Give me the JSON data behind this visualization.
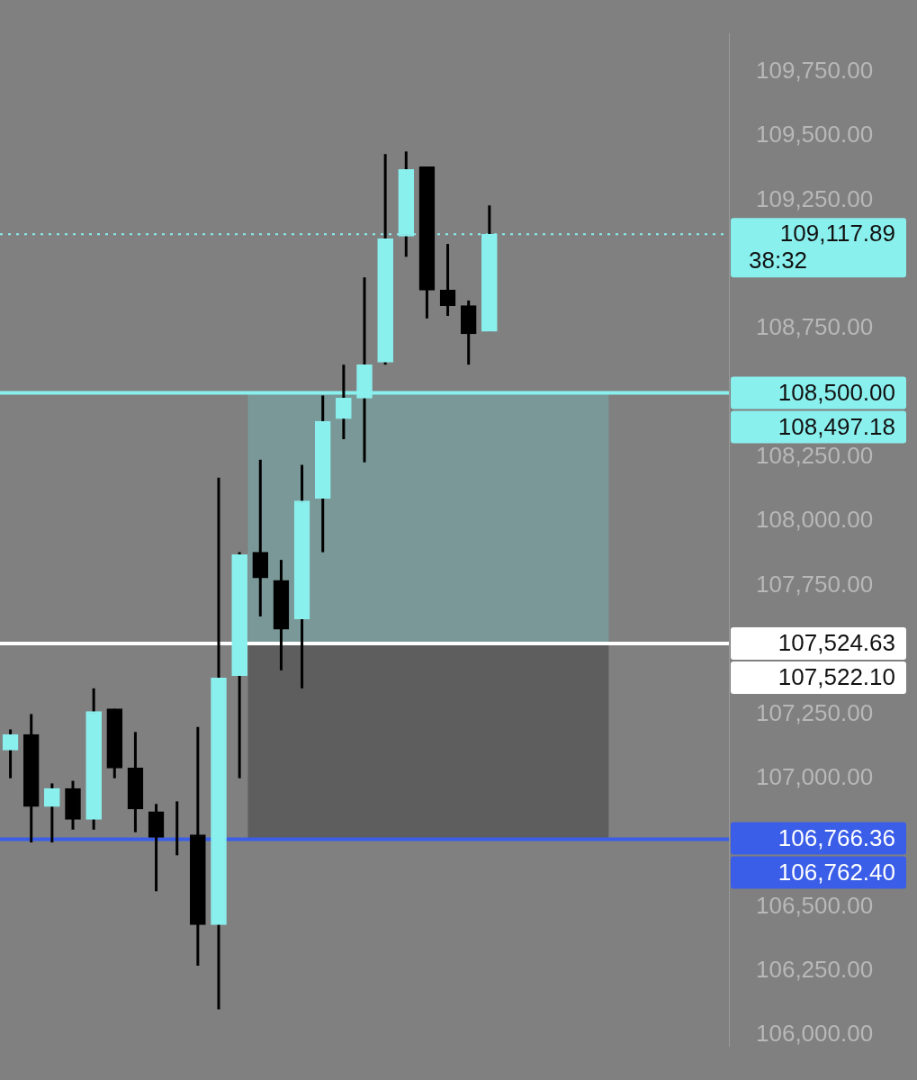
{
  "chart_data": {
    "type": "candlestick",
    "categories": [
      null,
      null,
      null,
      null,
      null,
      null,
      null,
      null,
      null,
      null,
      null,
      null,
      null,
      null,
      null,
      null,
      null,
      null,
      null,
      null,
      null,
      null,
      null,
      null,
      null,
      null,
      null,
      null,
      null,
      null,
      null,
      null,
      null,
      null,
      null
    ],
    "ohlc": [
      [
        107110,
        107190,
        107000,
        107170
      ],
      [
        107170,
        107250,
        106750,
        106890
      ],
      [
        106890,
        106980,
        106750,
        106960
      ],
      [
        106960,
        106990,
        106800,
        106840
      ],
      [
        106840,
        107350,
        106800,
        107260
      ],
      [
        107270,
        107270,
        107000,
        107040
      ],
      [
        107040,
        107180,
        106790,
        106880
      ],
      [
        106870,
        106900,
        106560,
        106770
      ],
      [
        106780,
        106910,
        106700,
        106780
      ],
      [
        106780,
        107200,
        106270,
        106430
      ],
      [
        106430,
        108170,
        106100,
        107390
      ],
      [
        107400,
        107880,
        107000,
        107870
      ],
      [
        107880,
        108240,
        107630,
        107780
      ],
      [
        107770,
        107850,
        107420,
        107580
      ],
      [
        107620,
        108220,
        107350,
        108080
      ],
      [
        108090,
        108490,
        107880,
        108390
      ],
      [
        108400,
        108610,
        108320,
        108480
      ],
      [
        108480,
        108950,
        108230,
        108610
      ],
      [
        108620,
        109430,
        108610,
        109100
      ],
      [
        109110,
        109440,
        109030,
        109370
      ],
      [
        109380,
        109380,
        108790,
        108900
      ],
      [
        108900,
        109080,
        108800,
        108840
      ],
      [
        108840,
        108860,
        108610,
        108730
      ],
      [
        108740,
        109230,
        108740,
        109117.89
      ],
      null,
      null,
      null,
      null,
      null,
      null,
      null,
      null,
      null,
      null,
      null
    ],
    "colors": [
      "#8af0ee",
      "#000000",
      "#8af0ee",
      "#000000",
      "#8af0ee",
      "#000000",
      "#000000",
      "#000000",
      "#000000",
      "#000000",
      "#8af0ee",
      "#8af0ee",
      "#000000",
      "#000000",
      "#8af0ee",
      "#8af0ee",
      "#8af0ee",
      "#8af0ee",
      "#8af0ee",
      "#8af0ee",
      "#000000",
      "#000000",
      "#000000",
      "#8af0ee",
      null,
      null,
      null,
      null,
      null,
      null,
      null,
      null,
      null,
      null,
      null
    ],
    "ylim": [
      105957,
      109898
    ],
    "yticks": [
      {
        "value": 106000,
        "label": "106,000.00"
      },
      {
        "value": 106250,
        "label": "106,250.00"
      },
      {
        "value": 106500,
        "label": "106,500.00"
      },
      {
        "value": 107000,
        "label": "107,000.00"
      },
      {
        "value": 107250,
        "label": "107,250.00"
      },
      {
        "value": 107750,
        "label": "107,750.00"
      },
      {
        "value": 108000,
        "label": "108,000.00"
      },
      {
        "value": 108250,
        "label": "108,250.00"
      },
      {
        "value": 108750,
        "label": "108,750.00"
      },
      {
        "value": 109250,
        "label": "109,250.00"
      },
      {
        "value": 109500,
        "label": "109,500.00"
      },
      {
        "value": 109750,
        "label": "109,750.00"
      }
    ],
    "tick_labels": "y",
    "grid": false,
    "legend": false,
    "ref_lines": [
      {
        "axis": "y",
        "value": 109117.89,
        "label": "109,117.89",
        "color": "#8af0ee",
        "line_style": "dotted"
      },
      {
        "axis": "y",
        "value": 108500,
        "label": "108,500.00",
        "color": "#8af0ee",
        "line_style": "solid"
      },
      {
        "axis": "y",
        "value": 107524.63,
        "label": "107,524.63",
        "color": "#ffffff",
        "line_style": "solid"
      },
      {
        "axis": "y",
        "value": 106762.4,
        "label": "106,762.40",
        "color": "#3b5ee8",
        "line_style": "solid"
      }
    ],
    "bands": [
      {
        "axis": "y",
        "from": 107524.63,
        "to": 108497.18,
        "color": "#7a9898"
      },
      {
        "axis": "y",
        "from": 106766.36,
        "to": 107522.1,
        "color": "#5e5e5e"
      }
    ],
    "annotations": [
      "38:32",
      "108,497.18",
      "107,522.10",
      "106,766.36"
    ]
  }
}
